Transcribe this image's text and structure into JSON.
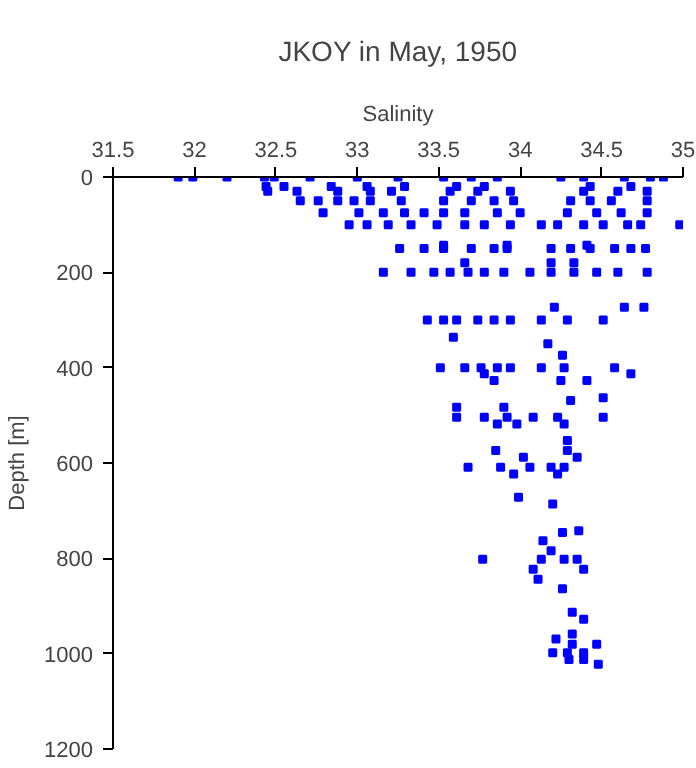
{
  "chart_data": {
    "type": "scatter",
    "title": "JKOY in May, 1950",
    "xlabel": "Salinity",
    "ylabel": "Depth [m]",
    "xlim": [
      31.5,
      35
    ],
    "ylim": [
      1200,
      0
    ],
    "xticks": [
      31.5,
      32,
      32.5,
      33,
      33.5,
      34,
      34.5,
      35
    ],
    "yticks": [
      0,
      200,
      400,
      600,
      800,
      1000,
      1200
    ],
    "grid": false,
    "marker": "square",
    "series": [
      {
        "color": "#0000ff",
        "x": [
          31.9,
          31.99,
          32.2,
          32.43,
          32.49,
          32.71,
          33.0,
          33.25,
          33.53,
          33.7,
          33.86,
          34.25,
          34.39,
          34.64,
          34.8,
          34.88,
          32.44,
          32.55,
          32.84,
          33.06,
          33.29,
          33.61,
          33.78,
          34.43,
          34.68,
          32.45,
          32.63,
          32.88,
          33.08,
          33.21,
          33.57,
          33.74,
          33.94,
          34.39,
          34.6,
          34.78,
          32.65,
          32.76,
          32.88,
          32.98,
          33.08,
          33.27,
          33.53,
          33.7,
          33.84,
          33.96,
          34.31,
          34.43,
          34.56,
          34.78,
          32.79,
          33.01,
          33.16,
          33.29,
          33.41,
          33.53,
          33.66,
          33.86,
          34.0,
          34.29,
          34.47,
          34.62,
          34.78,
          32.95,
          33.06,
          33.19,
          33.33,
          33.49,
          33.66,
          33.78,
          33.94,
          34.13,
          34.23,
          34.39,
          34.51,
          34.66,
          34.74,
          34.98,
          33.53,
          33.92,
          34.41,
          33.26,
          33.41,
          33.53,
          33.7,
          33.84,
          33.92,
          34.19,
          34.31,
          34.43,
          34.58,
          34.68,
          34.77,
          33.66,
          34.19,
          34.33,
          33.16,
          33.33,
          33.47,
          33.57,
          33.68,
          33.78,
          33.9,
          34.06,
          34.19,
          34.33,
          34.47,
          34.6,
          34.78,
          34.21,
          34.64,
          34.76,
          33.43,
          33.53,
          33.61,
          33.74,
          33.84,
          33.94,
          34.13,
          34.29,
          34.51,
          33.59,
          34.17,
          34.26,
          33.51,
          33.66,
          33.76,
          33.86,
          33.94,
          34.13,
          34.27,
          34.58,
          33.78,
          34.68,
          33.84,
          34.25,
          34.41,
          34.51,
          34.31,
          33.61,
          33.9,
          33.61,
          33.78,
          33.92,
          34.08,
          34.23,
          34.51,
          33.86,
          33.98,
          34.27,
          34.29,
          33.85,
          34.29,
          34.02,
          34.35,
          33.68,
          33.88,
          34.06,
          34.19,
          34.27,
          33.96,
          34.23,
          33.99,
          34.2,
          34.36,
          34.26,
          34.14,
          34.19,
          33.77,
          34.13,
          34.27,
          34.35,
          34.08,
          34.39,
          34.11,
          34.26,
          34.32,
          34.39,
          34.32,
          34.22,
          34.32,
          34.47,
          34.2,
          34.29,
          34.39,
          34.3,
          34.39,
          34.48
        ],
        "values": [
          0,
          0,
          0,
          0,
          0,
          0,
          0,
          0,
          0,
          0,
          0,
          0,
          0,
          0,
          0,
          0,
          20,
          20,
          20,
          20,
          20,
          20,
          20,
          20,
          20,
          30,
          30,
          30,
          30,
          30,
          30,
          30,
          30,
          30,
          30,
          30,
          50,
          50,
          50,
          50,
          50,
          50,
          50,
          50,
          50,
          50,
          50,
          50,
          50,
          50,
          75,
          75,
          75,
          75,
          75,
          75,
          75,
          75,
          75,
          75,
          75,
          75,
          75,
          100,
          100,
          100,
          100,
          100,
          100,
          100,
          100,
          100,
          100,
          100,
          100,
          100,
          100,
          100,
          143,
          143,
          143,
          150,
          150,
          150,
          150,
          150,
          150,
          150,
          150,
          150,
          150,
          150,
          150,
          180,
          180,
          180,
          200,
          200,
          200,
          200,
          200,
          200,
          200,
          200,
          200,
          200,
          200,
          200,
          200,
          273,
          273,
          273,
          300,
          300,
          300,
          300,
          300,
          300,
          300,
          300,
          300,
          336,
          350,
          374,
          400,
          400,
          400,
          400,
          400,
          400,
          400,
          400,
          413,
          413,
          427,
          427,
          427,
          463,
          469,
          483,
          483,
          504,
          504,
          504,
          504,
          504,
          504,
          518,
          518,
          518,
          553,
          574,
          574,
          588,
          588,
          609,
          609,
          609,
          609,
          609,
          623,
          623,
          672,
          686,
          742,
          746,
          763,
          784,
          802,
          802,
          802,
          802,
          823,
          823,
          844,
          864,
          913,
          928,
          959,
          969,
          980,
          980,
          998,
          998,
          998,
          1012,
          1012,
          1022
        ]
      }
    ]
  }
}
